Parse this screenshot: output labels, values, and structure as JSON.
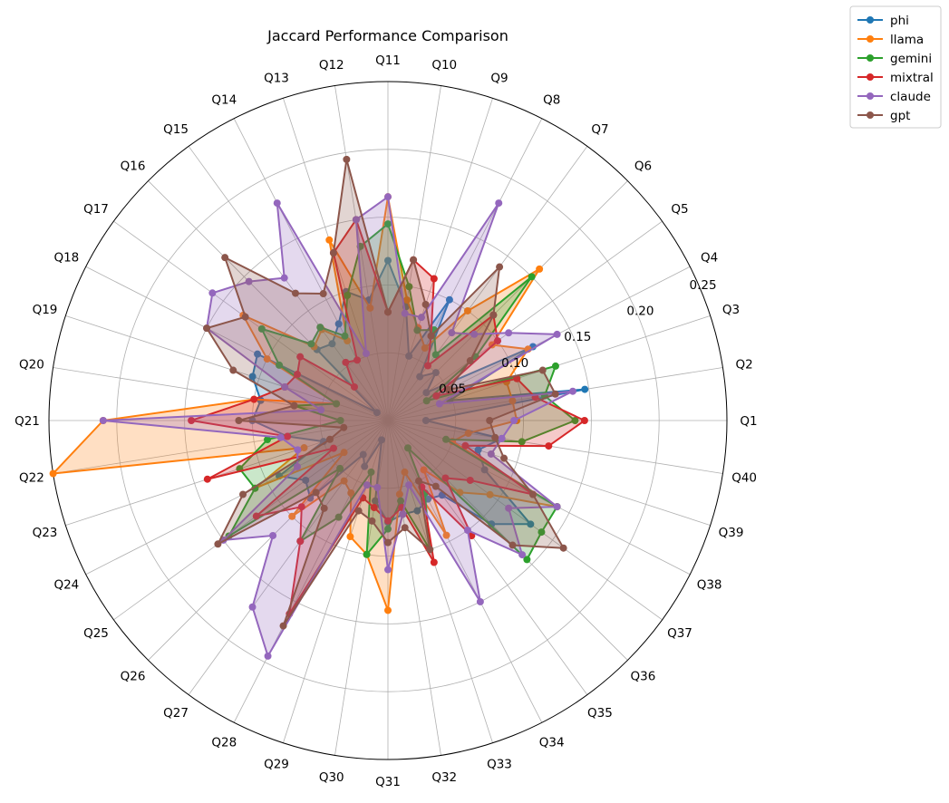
{
  "chart_data": {
    "type": "radar",
    "title": "Jaccard Performance Comparison",
    "categories": [
      "Q1",
      "Q2",
      "Q3",
      "Q4",
      "Q5",
      "Q6",
      "Q7",
      "Q8",
      "Q9",
      "Q10",
      "Q11",
      "Q12",
      "Q13",
      "Q14",
      "Q15",
      "Q16",
      "Q17",
      "Q18",
      "Q19",
      "Q20",
      "Q21",
      "Q22",
      "Q23",
      "Q24",
      "Q25",
      "Q26",
      "Q27",
      "Q28",
      "Q29",
      "Q30",
      "Q31",
      "Q32",
      "Q33",
      "Q34",
      "Q35",
      "Q36",
      "Q37",
      "Q38",
      "Q39",
      "Q40"
    ],
    "rlim": [
      0,
      0.25
    ],
    "rticks": [
      0.05,
      0.1,
      0.15,
      0.2,
      0.25
    ],
    "rtick_labels": [
      "0.05",
      "0.10",
      "0.15",
      "0.20",
      "0.25"
    ],
    "grid": true,
    "legend_position": "top-right",
    "series": [
      {
        "name": "phi",
        "color": "#1f77b4",
        "values": [
          0.028,
          0.147,
          0.048,
          0.12,
          0.035,
          0.05,
          0.04,
          0.1,
          0.05,
          0.085,
          0.118,
          0.09,
          0.1,
          0.08,
          0.07,
          0.074,
          0.01,
          0.108,
          0.105,
          0.095,
          0.1,
          0.075,
          0.05,
          0.09,
          0.075,
          0.081,
          0.031,
          0.038,
          0.015,
          0.06,
          0.075,
          0.07,
          0.07,
          0.065,
          0.068,
          0.108,
          0.13,
          0.08,
          0.07,
          0.085
        ]
      },
      {
        "name": "llama",
        "color": "#ff7f0e",
        "values": [
          0.095,
          0.093,
          0.092,
          0.116,
          0.095,
          0.158,
          0.1,
          0.06,
          0.072,
          0.09,
          0.165,
          0.084,
          0.14,
          0.066,
          0.083,
          0.077,
          0.132,
          0.1,
          0.04,
          0.1,
          0.21,
          0.25,
          0.065,
          0.11,
          0.04,
          0.1,
          0.055,
          0.06,
          0.09,
          0.1,
          0.14,
          0.055,
          0.04,
          0.095,
          0.045,
          0.075,
          0.093,
          0.14,
          0.05,
          0.06
        ]
      },
      {
        "name": "gemini",
        "color": "#2ca02c",
        "values": [
          0.138,
          0.117,
          0.13,
          0.032,
          0.08,
          0.15,
          0.06,
          0.075,
          0.07,
          0.1,
          0.145,
          0.13,
          0.097,
          0.07,
          0.085,
          0.08,
          0.115,
          0.09,
          0.04,
          0.07,
          0.035,
          0.09,
          0.115,
          0.11,
          0.145,
          0.05,
          0.11,
          0.08,
          0.04,
          0.1,
          0.08,
          0.06,
          0.1,
          0.06,
          0.025,
          0.145,
          0.14,
          0.14,
          0.045,
          0.1
        ]
      },
      {
        "name": "mixtral",
        "color": "#d62728",
        "values": [
          0.145,
          0.11,
          0.1,
          0.04,
          0.1,
          0.11,
          0.05,
          0.07,
          0.11,
          0.12,
          0.08,
          0.15,
          0.13,
          0.05,
          0.053,
          0.035,
          0.08,
          0.075,
          0.08,
          0.1,
          0.145,
          0.075,
          0.14,
          0.045,
          0.12,
          0.09,
          0.11,
          0.16,
          0.06,
          0.065,
          0.074,
          0.065,
          0.11,
          0.055,
          0.105,
          0.06,
          0.075,
          0.12,
          0.06,
          0.12
        ]
      },
      {
        "name": "claude",
        "color": "#9467bd",
        "values": [
          0.093,
          0.138,
          0.04,
          0.14,
          0.11,
          0.09,
          0.08,
          0.18,
          0.08,
          0.08,
          0.165,
          0.15,
          0.052,
          0.18,
          0.13,
          0.145,
          0.16,
          0.15,
          0.08,
          0.05,
          0.21,
          0.08,
          0.07,
          0.075,
          0.15,
          0.12,
          0.17,
          0.195,
          0.05,
          0.05,
          0.11,
          0.07,
          0.05,
          0.15,
          0.1,
          0.14,
          0.11,
          0.14,
          0.08,
          0.085
        ]
      },
      {
        "name": "gpt",
        "color": "#8c564b",
        "values": [
          0.075,
          0.125,
          0.12,
          0.05,
          0.075,
          0.11,
          0.14,
          0.07,
          0.09,
          0.12,
          0.08,
          0.195,
          0.13,
          0.105,
          0.116,
          0.17,
          0.13,
          0.15,
          0.12,
          0.07,
          0.11,
          0.033,
          0.045,
          0.12,
          0.155,
          0.075,
          0.08,
          0.17,
          0.07,
          0.075,
          0.09,
          0.08,
          0.1,
          0.05,
          0.06,
          0.13,
          0.16,
          0.12,
          0.09,
          0.08
        ]
      }
    ]
  }
}
